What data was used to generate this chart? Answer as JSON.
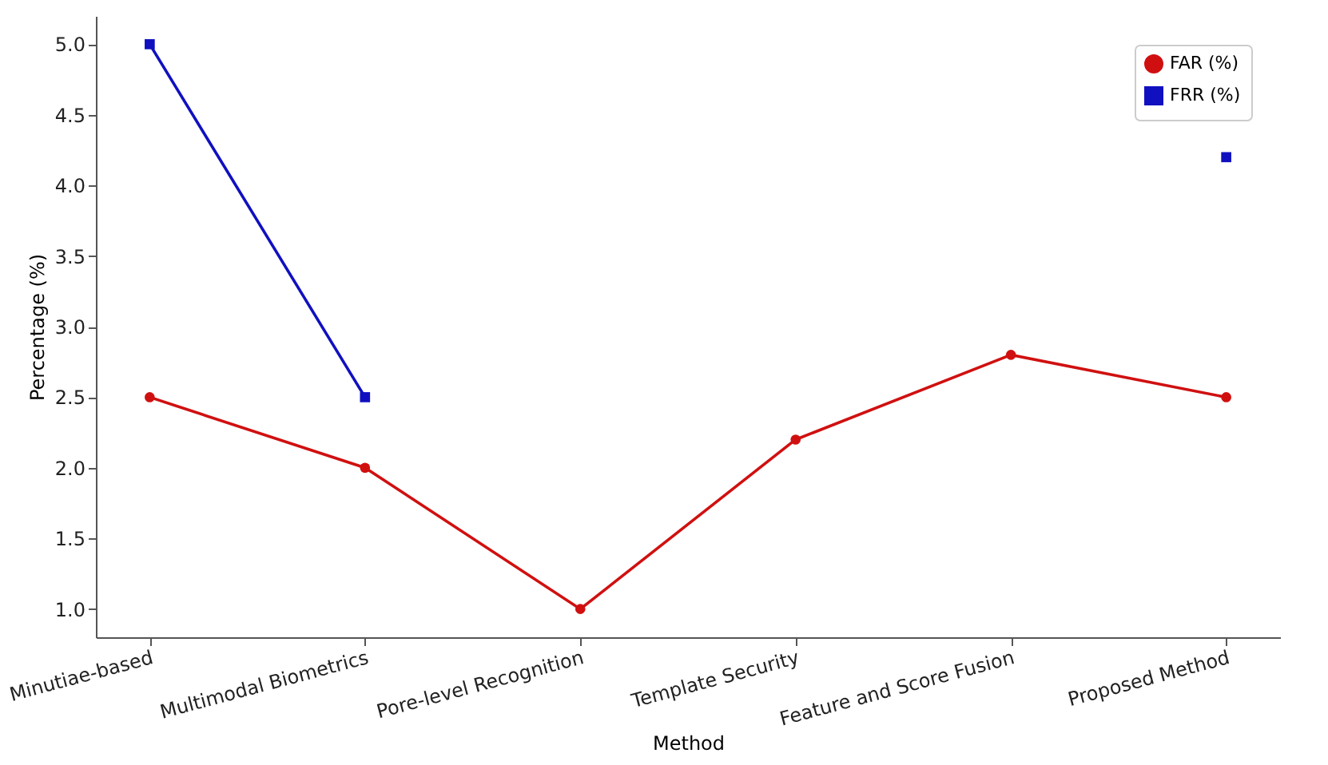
{
  "chart_data": {
    "type": "line",
    "xlabel": "Method",
    "ylabel": "Percentage (%)",
    "categories": [
      "Minutiae-based",
      "Multimodal Biometrics",
      "Pore-level Recognition",
      "Template Security",
      "Feature and Score Fusion",
      "Proposed Method"
    ],
    "series": [
      {
        "name": "FAR (%)",
        "color": "#d01010",
        "marker": "circle",
        "values": [
          2.5,
          2.0,
          1.0,
          2.2,
          2.8,
          2.5
        ]
      },
      {
        "name": "FRR (%)",
        "color": "#1010c0",
        "marker": "square",
        "values": [
          5.0,
          2.5,
          null,
          null,
          null,
          4.2
        ]
      }
    ],
    "ylim": [
      0.8,
      5.2
    ],
    "yticks": [
      {
        "value": 1,
        "label": "1.0"
      },
      1.5,
      {
        "value": 2,
        "label": "2.0"
      },
      2.5,
      {
        "value": 3,
        "label": "3.0"
      },
      3.5,
      {
        "value": 4,
        "label": "4.0"
      },
      4.5,
      {
        "value": 5,
        "label": "5.0"
      }
    ],
    "grid": false,
    "legend": "top right",
    "line_style": "solid"
  }
}
